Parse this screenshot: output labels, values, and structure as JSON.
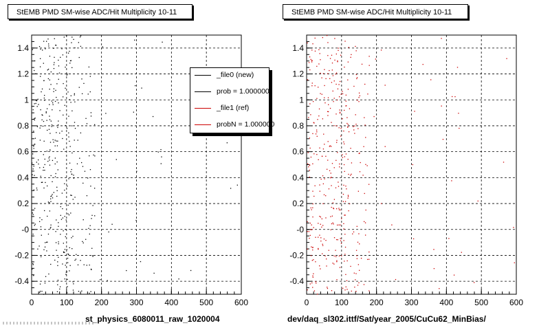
{
  "chart_data": [
    {
      "type": "scatter",
      "title": "StEMB PMD SM-wise ADC/Hit Multiplicity 10-11",
      "xlabel": "st_physics_6080011_raw_1020004",
      "ylabel": "",
      "xlim": [
        0,
        600
      ],
      "ylim": [
        -0.5,
        1.5
      ],
      "x_ticks": [
        "0",
        "100",
        "200",
        "300",
        "400",
        "500",
        "600"
      ],
      "y_ticks": [
        "-0.4",
        "-0.2",
        "-0",
        "0.2",
        "0.4",
        "0.6",
        "0.8",
        "1",
        "1.2",
        "1.4"
      ],
      "grid": true,
      "legend_placement": "top-right",
      "series": [
        {
          "name": "_file0 (new)",
          "color": "#000000"
        }
      ],
      "legend": [
        "_file0 (new)",
        "prob = 1.000000",
        "_file1 (ref)",
        "probN = 1.000000"
      ],
      "points_summary": "dense black points at x 0-120, sparse to x 600"
    },
    {
      "type": "scatter",
      "title": "StEMB PMD SM-wise ADC/Hit Multiplicity 10-11",
      "xlabel": "dev/daq_sl302.ittf/Sat/year_2005/CuCu62_MinBias/",
      "ylabel": "",
      "xlim": [
        0,
        600
      ],
      "ylim": [
        -0.5,
        1.5
      ],
      "x_ticks": [
        "0",
        "100",
        "200",
        "300",
        "400",
        "500",
        "600"
      ],
      "y_ticks": [
        "-0.4",
        "-0.2",
        "-0",
        "0.2",
        "0.4",
        "0.6",
        "0.8",
        "1",
        "1.2",
        "1.4"
      ],
      "grid": true,
      "series": [
        {
          "name": "_file1 (ref)",
          "color": "#cc0000"
        }
      ],
      "points_summary": "dense red points at x 0-120, sparse to x 600"
    }
  ],
  "colors": {
    "new": "#000000",
    "ref": "#cc0000"
  }
}
